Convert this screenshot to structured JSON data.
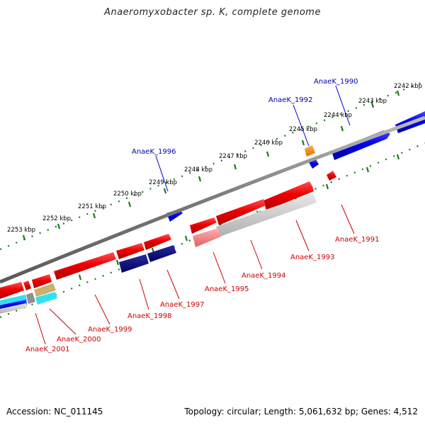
{
  "title": "Anaeromyxobacter sp. K, complete genome",
  "footer": {
    "accession": "Accession: NC_011145",
    "topology": "Topology: circular; Length: 5,061,632 bp; Genes: 4,512"
  },
  "colors": {
    "backbone": "#808080",
    "tick": "#1a7a1a",
    "forward_gene": "#0000ee",
    "reverse_gene": "#ee0000",
    "navy_gene": "#000080",
    "label_forward": "#0000aa",
    "label_reverse": "#cc0000"
  },
  "ticks": [
    {
      "text": "2242 kbp"
    },
    {
      "text": "2243 kbp"
    },
    {
      "text": "2244 kbp"
    },
    {
      "text": "2245 kbp"
    },
    {
      "text": "2246 kbp"
    },
    {
      "text": "2247 kbp"
    },
    {
      "text": "2248 kbp"
    },
    {
      "text": "2249 kbp"
    },
    {
      "text": "2250 kbp"
    },
    {
      "text": "2251 kbp"
    },
    {
      "text": "2252 kbp"
    },
    {
      "text": "2253 kbp"
    }
  ],
  "forward_labels": [
    {
      "text": "AnaeK_1990"
    },
    {
      "text": "AnaeK_1992"
    },
    {
      "text": "AnaeK_1996"
    }
  ],
  "reverse_labels": [
    {
      "text": "AnaeK_1991"
    },
    {
      "text": "AnaeK_1993"
    },
    {
      "text": "AnaeK_1994"
    },
    {
      "text": "AnaeK_1995"
    },
    {
      "text": "AnaeK_1997"
    },
    {
      "text": "AnaeK_1998"
    },
    {
      "text": "AnaeK_1999"
    },
    {
      "text": "AnaeK_2000"
    },
    {
      "text": "AnaeK_2001"
    }
  ]
}
